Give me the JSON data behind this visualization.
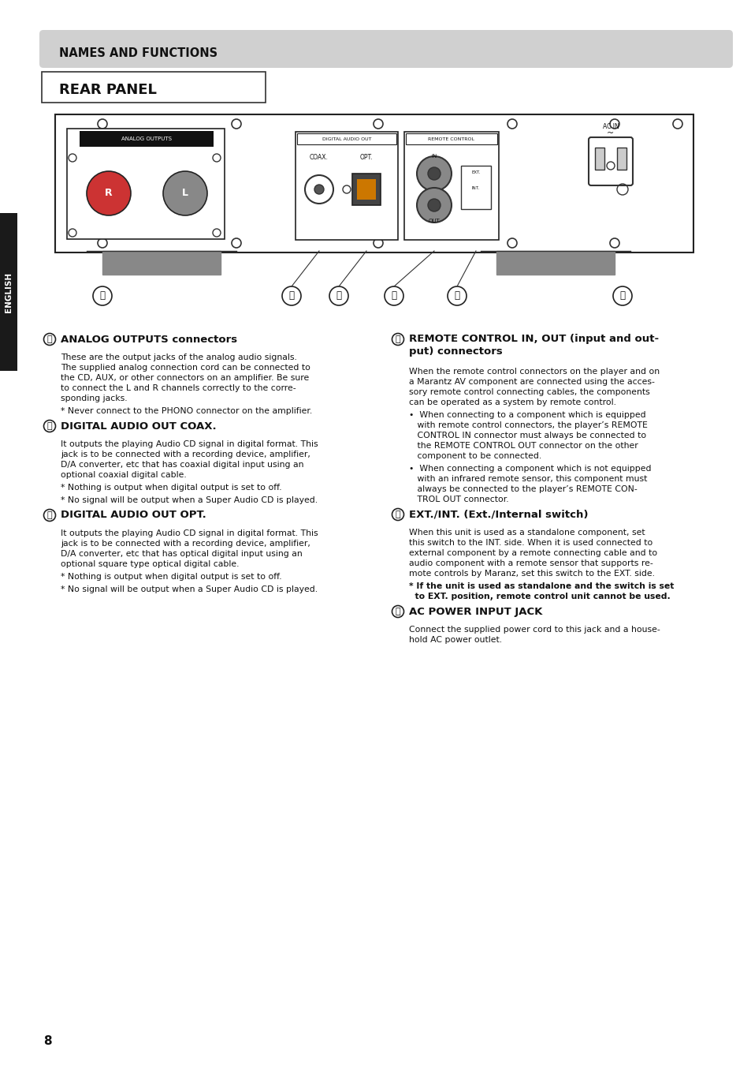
{
  "bg_color": "#ffffff",
  "page_bg": "#ffffff",
  "sidebar_color": "#1a1a1a",
  "sidebar_text": "ENGLISH",
  "header_bg": "#d0d0d0",
  "header_text": "NAMES AND FUNCTIONS",
  "subheader_text": "REAR PANEL",
  "page_number": "8",
  "sections": [
    {
      "label": "Ⓐ",
      "title": "ANALOG OUTPUTS connectors",
      "body": [
        "These are the output jacks of the analog audio signals. The supplied analog connection cord can be connected to the CD, AUX, or other connectors on an amplifier. Be sure to connect the L and R channels correctly to the corre-sponding jacks.",
        "* Never connect to the PHONO connector on the amplifier."
      ],
      "bold_body": false
    },
    {
      "label": "Ⓑ",
      "title": "DIGITAL AUDIO OUT COAX.",
      "body": [
        "It outputs the playing Audio CD signal in digital format. This jack is to be connected with a recording device, amplifier, D/A converter, etc that has coaxial digital input using an optional coaxial digital cable.",
        "* Nothing is output when digital output is set to off.",
        "* No signal will be output when a Super Audio CD is played."
      ],
      "bold_body": false
    },
    {
      "label": "Ⓒ",
      "title": "DIGITAL AUDIO OUT OPT.",
      "body": [
        "It outputs the playing Audio CD signal in digital format. This jack is to be connected with a recording device, amplifier, D/A converter, etc that has optical digital input using an optional square type optical digital cable.",
        "* Nothing is output when digital output is set to off.",
        "* No signal will be output when a Super Audio CD is played."
      ],
      "bold_body": false
    }
  ],
  "sections_right": [
    {
      "label": "Ⓓ",
      "title": "REMOTE CONTROL IN, OUT (input and out-\nput) connectors",
      "body": [
        "When the remote control connectors on the player and on a Marantz AV component are connected using the acces-sory remote control connecting cables, the components can be operated as a system by remote control.",
        "•  When connecting to a component which is equipped with remote control connectors, the player’s REMOTE CONTROL IN connector must always be connected to the REMOTE CONTROL OUT connector on the other component to be connected.",
        "•  When connecting a component which is not equipped with an infrared remote sensor, this component must always be connected to the player’s REMOTE CON-TROL OUT connector."
      ],
      "bold_body": false
    },
    {
      "label": "Ⓔ",
      "title": "EXT./INT. (Ext./Internal switch)",
      "body": [
        "When this unit is used as a standalone component, set this switch to the INT. side. When it is used connected to external component by a remote connecting cable and to audio component with a remote sensor that supports re-mote controls by Maranz, set this switch to the EXT. side.",
        "* If the unit is used as standalone and the switch is set to EXT. position, remote control unit cannot be used."
      ],
      "bold_last": true
    },
    {
      "label": "Ⓕ",
      "title": "AC POWER INPUT JACK",
      "body": [
        "Connect the supplied power cord to this jack and a house-hold AC power outlet."
      ],
      "bold_body": false
    }
  ]
}
